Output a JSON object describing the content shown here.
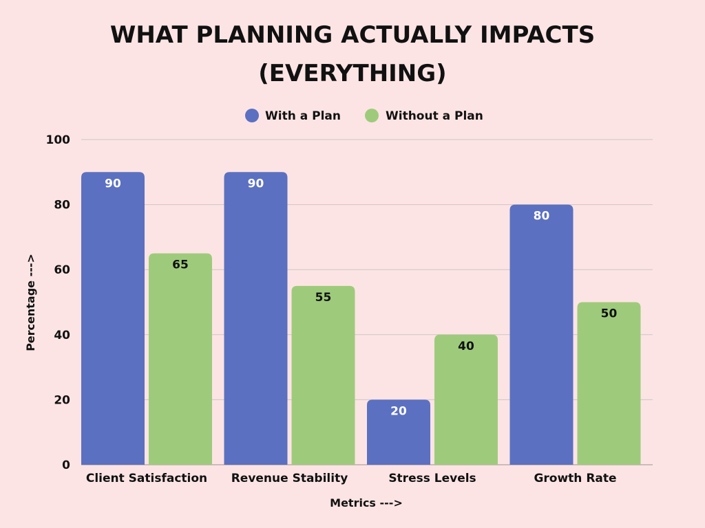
{
  "colors": {
    "background": "#fde4e4",
    "with_plan": "#5b70c1",
    "without_plan": "#9ecb7b",
    "gridline": "#cfc4c4",
    "label_on_blue": "#ffffff",
    "label_on_green": "#111111"
  },
  "chart_data": {
    "type": "bar",
    "title_lines": [
      "WHAT PLANNING ACTUALLY IMPACTS",
      "(EVERYTHING)"
    ],
    "xlabel": "Metrics --->",
    "ylabel": "Percentage --->",
    "categories": [
      "Client Satisfaction",
      "Revenue Stability",
      "Stress Levels",
      "Growth Rate"
    ],
    "series": [
      {
        "name": "With a Plan",
        "values": [
          90,
          90,
          20,
          80
        ],
        "color": "#5b70c1",
        "label_color": "#ffffff"
      },
      {
        "name": "Without a Plan",
        "values": [
          65,
          55,
          40,
          50
        ],
        "color": "#9ecb7b",
        "label_color": "#111111"
      }
    ],
    "ylim": [
      0,
      100
    ],
    "yticks": [
      0,
      20,
      40,
      60,
      80,
      100
    ],
    "grid": true,
    "legend_position": "top-center",
    "data_labels": true
  }
}
